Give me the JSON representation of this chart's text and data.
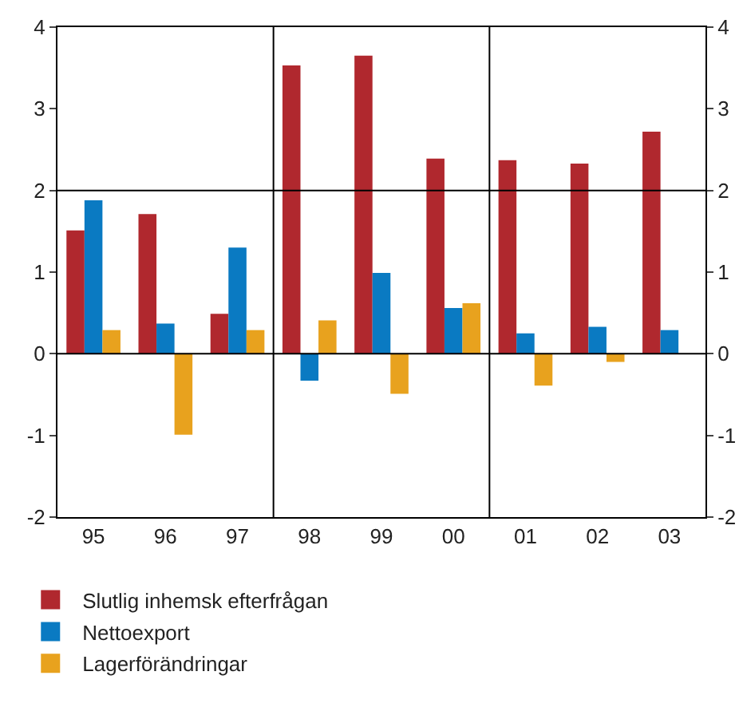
{
  "chart_data": {
    "type": "bar",
    "categories": [
      "95",
      "96",
      "97",
      "98",
      "99",
      "00",
      "01",
      "02",
      "03"
    ],
    "series": [
      {
        "name": "Slutlig inhemsk efterfrågan",
        "color": "#b0282e",
        "values": [
          1.51,
          1.71,
          0.49,
          3.53,
          3.65,
          2.39,
          2.37,
          2.33,
          2.72
        ]
      },
      {
        "name": "Nettoexport",
        "color": "#0a7ac2",
        "values": [
          1.88,
          0.37,
          1.3,
          -0.33,
          0.99,
          0.56,
          0.25,
          0.33,
          0.29
        ]
      },
      {
        "name": "Lagerförändringar",
        "color": "#e8a21e",
        "values": [
          0.29,
          -0.99,
          0.29,
          0.41,
          -0.49,
          0.62,
          -0.39,
          -0.1,
          null
        ]
      }
    ],
    "ylim": [
      -2,
      4
    ],
    "yticks": [
      -2,
      -1,
      0,
      1,
      2,
      3,
      4
    ],
    "y2lim": [
      -2,
      4
    ],
    "y2ticks": [
      -2,
      -1,
      0,
      1,
      2,
      3,
      4
    ],
    "ref_lines": [
      {
        "axis": "y",
        "value": 0
      },
      {
        "axis": "y",
        "value": 2
      }
    ],
    "grid": false,
    "legend": "bottom"
  }
}
